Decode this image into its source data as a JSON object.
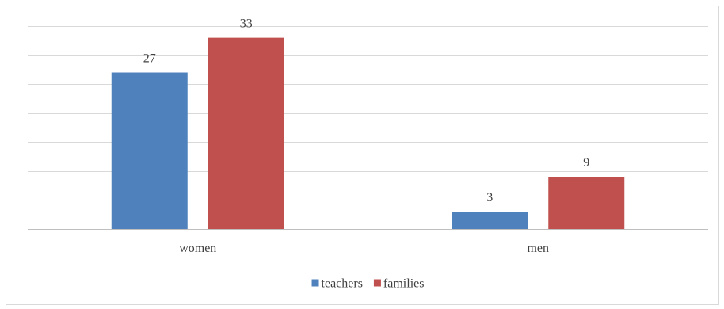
{
  "chart_data": {
    "type": "bar",
    "categories": [
      "women",
      "men"
    ],
    "series": [
      {
        "name": "teachers",
        "values": [
          27,
          3
        ],
        "color": "#4f81bd"
      },
      {
        "name": "families",
        "values": [
          33,
          9
        ],
        "color": "#c0504d"
      }
    ],
    "title": "",
    "xlabel": "",
    "ylabel": "",
    "ylim": [
      0,
      35
    ],
    "y_gridline_step": 5,
    "y_tick_labels_shown": false,
    "grid": true,
    "legend": "bottom",
    "data_labels": true
  }
}
